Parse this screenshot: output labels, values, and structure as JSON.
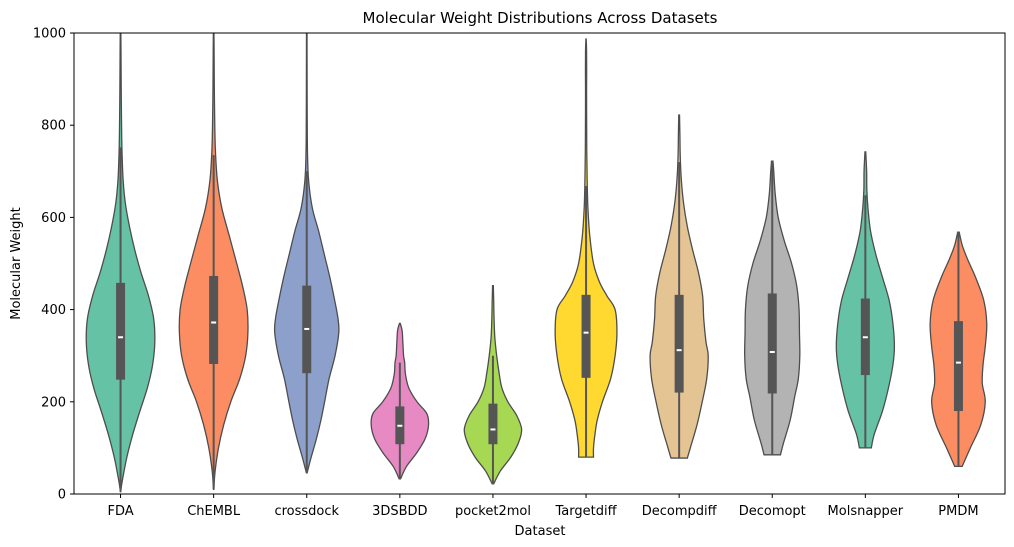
{
  "chart_data": {
    "type": "violin",
    "title": "Molecular Weight Distributions Across Datasets",
    "xlabel": "Dataset",
    "ylabel": "Molecular Weight",
    "ylim": [
      0,
      1000
    ],
    "yticks": [
      0,
      200,
      400,
      600,
      800,
      1000
    ],
    "grid": false,
    "legend": "none",
    "categories": [
      "FDA",
      "ChEMBL",
      "crossdock",
      "3DSBDD",
      "pocket2mol",
      "Targetdiff",
      "Decompdiff",
      "Decomopt",
      "Molsnapper",
      "PMDM"
    ],
    "violins": [
      {
        "category": "FDA",
        "color": "#66c2a5",
        "min": 5,
        "max": 1000,
        "q1": 248,
        "median": 340,
        "q3": 458,
        "whisker_low": 5,
        "whisker_high": 752,
        "profile": [
          [
            5,
            0.003
          ],
          [
            30,
            0.05
          ],
          [
            80,
            0.17
          ],
          [
            130,
            0.33
          ],
          [
            180,
            0.52
          ],
          [
            230,
            0.72
          ],
          [
            280,
            0.86
          ],
          [
            330,
            0.92
          ],
          [
            380,
            0.89
          ],
          [
            430,
            0.75
          ],
          [
            480,
            0.55
          ],
          [
            530,
            0.38
          ],
          [
            580,
            0.24
          ],
          [
            630,
            0.13
          ],
          [
            680,
            0.07
          ],
          [
            740,
            0.04
          ],
          [
            800,
            0.027
          ],
          [
            880,
            0.018
          ],
          [
            960,
            0.012
          ],
          [
            1000,
            0.008
          ]
        ]
      },
      {
        "category": "ChEMBL",
        "color": "#fc8d62",
        "min": 10,
        "max": 1000,
        "q1": 282,
        "median": 372,
        "q3": 473,
        "whisker_low": 10,
        "whisker_high": 735,
        "profile": [
          [
            10,
            0.003
          ],
          [
            50,
            0.04
          ],
          [
            100,
            0.13
          ],
          [
            150,
            0.27
          ],
          [
            200,
            0.46
          ],
          [
            250,
            0.7
          ],
          [
            300,
            0.86
          ],
          [
            350,
            0.92
          ],
          [
            400,
            0.9
          ],
          [
            450,
            0.78
          ],
          [
            500,
            0.62
          ],
          [
            560,
            0.42
          ],
          [
            620,
            0.22
          ],
          [
            680,
            0.1
          ],
          [
            740,
            0.05
          ],
          [
            800,
            0.03
          ],
          [
            880,
            0.018
          ],
          [
            960,
            0.012
          ],
          [
            1000,
            0.008
          ]
        ]
      },
      {
        "category": "crossdock",
        "color": "#8da0cb",
        "min": 46,
        "max": 1000,
        "q1": 262,
        "median": 358,
        "q3": 452,
        "whisker_low": 46,
        "whisker_high": 700,
        "profile": [
          [
            46,
            0.01
          ],
          [
            80,
            0.12
          ],
          [
            120,
            0.26
          ],
          [
            160,
            0.38
          ],
          [
            200,
            0.48
          ],
          [
            250,
            0.6
          ],
          [
            300,
            0.76
          ],
          [
            350,
            0.86
          ],
          [
            380,
            0.84
          ],
          [
            420,
            0.75
          ],
          [
            470,
            0.62
          ],
          [
            520,
            0.47
          ],
          [
            570,
            0.32
          ],
          [
            620,
            0.15
          ],
          [
            680,
            0.05
          ],
          [
            740,
            0.02
          ],
          [
            820,
            0.012
          ],
          [
            900,
            0.009
          ],
          [
            1000,
            0.007
          ]
        ]
      },
      {
        "category": "3DSBDD",
        "color": "#e78ac3",
        "min": 33,
        "max": 370,
        "q1": 108,
        "median": 148,
        "q3": 190,
        "whisker_low": 33,
        "whisker_high": 285,
        "profile": [
          [
            33,
            0.02
          ],
          [
            60,
            0.18
          ],
          [
            90,
            0.46
          ],
          [
            120,
            0.68
          ],
          [
            150,
            0.77
          ],
          [
            175,
            0.72
          ],
          [
            200,
            0.46
          ],
          [
            230,
            0.24
          ],
          [
            260,
            0.15
          ],
          [
            285,
            0.13
          ],
          [
            300,
            0.1
          ],
          [
            330,
            0.08
          ],
          [
            355,
            0.06
          ],
          [
            370,
            0.01
          ]
        ]
      },
      {
        "category": "pocket2mol",
        "color": "#a6d854",
        "min": 22,
        "max": 452,
        "q1": 108,
        "median": 140,
        "q3": 196,
        "whisker_low": 22,
        "whisker_high": 300,
        "profile": [
          [
            22,
            0.02
          ],
          [
            50,
            0.2
          ],
          [
            80,
            0.48
          ],
          [
            110,
            0.68
          ],
          [
            140,
            0.77
          ],
          [
            170,
            0.64
          ],
          [
            200,
            0.4
          ],
          [
            230,
            0.24
          ],
          [
            260,
            0.17
          ],
          [
            300,
            0.1
          ],
          [
            340,
            0.05
          ],
          [
            380,
            0.03
          ],
          [
            420,
            0.02
          ],
          [
            452,
            0.01
          ]
        ]
      },
      {
        "category": "Targetdiff",
        "color": "#ffd92f",
        "min": 80,
        "max": 987,
        "q1": 252,
        "median": 350,
        "q3": 432,
        "whisker_low": 80,
        "whisker_high": 668,
        "profile": [
          [
            80,
            0.2
          ],
          [
            100,
            0.2
          ],
          [
            130,
            0.24
          ],
          [
            160,
            0.3
          ],
          [
            200,
            0.44
          ],
          [
            250,
            0.66
          ],
          [
            300,
            0.78
          ],
          [
            350,
            0.83
          ],
          [
            400,
            0.78
          ],
          [
            430,
            0.56
          ],
          [
            460,
            0.36
          ],
          [
            500,
            0.2
          ],
          [
            560,
            0.1
          ],
          [
            620,
            0.05
          ],
          [
            680,
            0.03
          ],
          [
            740,
            0.02
          ],
          [
            800,
            0.016
          ],
          [
            870,
            0.014
          ],
          [
            920,
            0.016
          ],
          [
            960,
            0.014
          ],
          [
            987,
            0.004
          ]
        ]
      },
      {
        "category": "Decompdiff",
        "color": "#e5c494",
        "min": 78,
        "max": 822,
        "q1": 220,
        "median": 312,
        "q3": 432,
        "whisker_low": 78,
        "whisker_high": 720,
        "profile": [
          [
            78,
            0.22
          ],
          [
            100,
            0.3
          ],
          [
            150,
            0.48
          ],
          [
            200,
            0.62
          ],
          [
            250,
            0.74
          ],
          [
            300,
            0.78
          ],
          [
            330,
            0.72
          ],
          [
            380,
            0.66
          ],
          [
            430,
            0.63
          ],
          [
            480,
            0.52
          ],
          [
            530,
            0.36
          ],
          [
            580,
            0.22
          ],
          [
            630,
            0.12
          ],
          [
            680,
            0.06
          ],
          [
            730,
            0.03
          ],
          [
            780,
            0.02
          ],
          [
            822,
            0.01
          ]
        ]
      },
      {
        "category": "Decomopt",
        "color": "#b3b3b3",
        "min": 85,
        "max": 722,
        "q1": 218,
        "median": 308,
        "q3": 435,
        "whisker_low": 85,
        "whisker_high": 720,
        "profile": [
          [
            85,
            0.22
          ],
          [
            110,
            0.3
          ],
          [
            160,
            0.48
          ],
          [
            210,
            0.6
          ],
          [
            250,
            0.7
          ],
          [
            300,
            0.74
          ],
          [
            350,
            0.73
          ],
          [
            400,
            0.72
          ],
          [
            450,
            0.66
          ],
          [
            500,
            0.52
          ],
          [
            550,
            0.32
          ],
          [
            600,
            0.16
          ],
          [
            650,
            0.08
          ],
          [
            700,
            0.04
          ],
          [
            722,
            0.02
          ]
        ]
      },
      {
        "category": "Molsnapper",
        "color": "#66c2a5",
        "min": 100,
        "max": 742,
        "q1": 258,
        "median": 340,
        "q3": 424,
        "whisker_low": 100,
        "whisker_high": 648,
        "profile": [
          [
            100,
            0.16
          ],
          [
            130,
            0.24
          ],
          [
            180,
            0.46
          ],
          [
            230,
            0.62
          ],
          [
            280,
            0.74
          ],
          [
            320,
            0.78
          ],
          [
            370,
            0.74
          ],
          [
            420,
            0.64
          ],
          [
            470,
            0.46
          ],
          [
            520,
            0.28
          ],
          [
            570,
            0.14
          ],
          [
            620,
            0.07
          ],
          [
            660,
            0.04
          ],
          [
            700,
            0.035
          ],
          [
            742,
            0.01
          ]
        ]
      },
      {
        "category": "PMDM",
        "color": "#fc8d62",
        "min": 60,
        "max": 568,
        "q1": 180,
        "median": 285,
        "q3": 375,
        "whisker_low": 60,
        "whisker_high": 568,
        "profile": [
          [
            60,
            0.1
          ],
          [
            100,
            0.32
          ],
          [
            150,
            0.6
          ],
          [
            200,
            0.72
          ],
          [
            240,
            0.64
          ],
          [
            280,
            0.66
          ],
          [
            320,
            0.72
          ],
          [
            370,
            0.76
          ],
          [
            420,
            0.68
          ],
          [
            470,
            0.46
          ],
          [
            510,
            0.24
          ],
          [
            540,
            0.1
          ],
          [
            568,
            0.02
          ]
        ]
      }
    ]
  }
}
